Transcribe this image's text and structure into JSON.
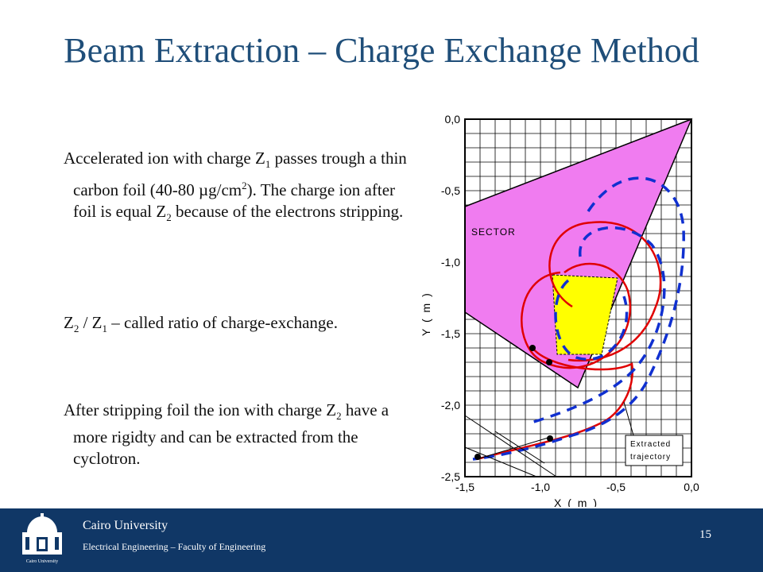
{
  "slide": {
    "title": "Beam Extraction – Charge Exchange Method",
    "page_number": "15"
  },
  "body": {
    "p1": {
      "a": "Accelerated ion with charge Z",
      "sub1": "1",
      "b": " passes trough a thin carbon foil (40-80 µg/cm",
      "sup1": "2",
      "c": "). The charge ion after foil is equal Z",
      "sub2": "2",
      "d": " because of the electrons  stripping."
    },
    "p2": {
      "a": "Z",
      "sub1": "2",
      "b": " / Z",
      "sub2": "1",
      "c": " – called ratio of charge-exchange."
    },
    "p3": {
      "a": "After stripping foil the ion with charge Z",
      "sub1": "2",
      "b": " have a more rigidty and can be extracted from the cyclotron."
    }
  },
  "figure": {
    "x_tick_labels": [
      "-1,5",
      "-1,0",
      "-0,5",
      "0,0"
    ],
    "y_tick_labels": [
      "0,0",
      "-0,5",
      "-1,0",
      "-1,5",
      "-2,0",
      "-2,5"
    ],
    "x_label": "X ( m )",
    "y_label": "Y ( m )",
    "sector_label": "SECTOR",
    "extracted_label_line1": "Extracted",
    "extracted_label_line2": "trajectory",
    "colors": {
      "sector": "#F07CF0",
      "foil": "#FFFF00",
      "orbit": "#E00000",
      "dashed_orbit": "#1030D0",
      "grid": "#000000"
    }
  },
  "footer": {
    "university": "Cairo University",
    "faculty": "Electrical Engineering – Faculty of Engineering",
    "logo_caption": "Cairo University",
    "background_color": "#103766"
  }
}
